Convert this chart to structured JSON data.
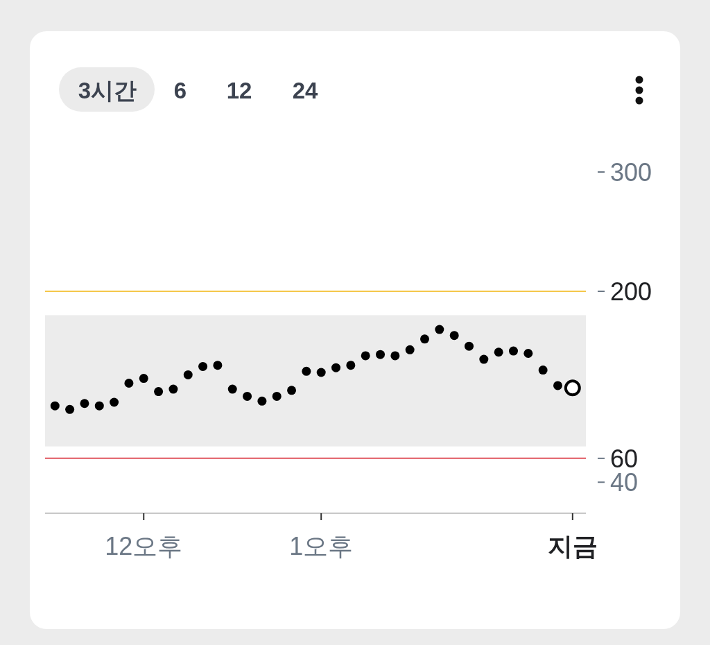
{
  "chart_data": {
    "type": "scatter",
    "annotations": [
      "3시간",
      "6",
      "12",
      "24"
    ],
    "categories": [
      null,
      null,
      null,
      null,
      null,
      null,
      "12오후",
      null,
      null,
      null,
      null,
      null,
      null,
      null,
      null,
      null,
      null,
      null,
      "1오후",
      null,
      null,
      null,
      null,
      null,
      null,
      null,
      null,
      null,
      null,
      null,
      null,
      null,
      null,
      null,
      null,
      "지금"
    ],
    "series": [
      {
        "color": "#000000",
        "values": [
          104,
          101,
          106,
          104,
          107,
          123,
          127,
          116,
          118,
          130,
          137,
          138,
          118,
          112,
          108,
          112,
          117,
          133,
          132,
          136,
          138,
          146,
          147,
          146,
          151,
          160,
          168,
          163,
          154,
          143,
          149,
          150,
          148,
          134,
          121,
          null
        ]
      },
      {
        "color": "#000000",
        "values": [
          null,
          null,
          null,
          null,
          null,
          null,
          null,
          null,
          null,
          null,
          null,
          null,
          null,
          null,
          null,
          null,
          null,
          null,
          null,
          null,
          null,
          null,
          null,
          null,
          null,
          null,
          null,
          null,
          null,
          null,
          null,
          null,
          null,
          null,
          null,
          119
        ]
      }
    ],
    "ylim": [
      14,
      300
    ],
    "yticks": [
      40,
      60,
      200,
      300
    ],
    "bands": [
      {
        "axis": "y",
        "from": 70,
        "to": 180,
        "color": "#ececec"
      }
    ],
    "ref_lines": [
      {
        "axis": "y",
        "value": 200,
        "color": "#f5c74a"
      },
      {
        "axis": "y",
        "value": 60,
        "color": "#e0545e"
      }
    ],
    "marker": "circle",
    "grid": false
  }
}
